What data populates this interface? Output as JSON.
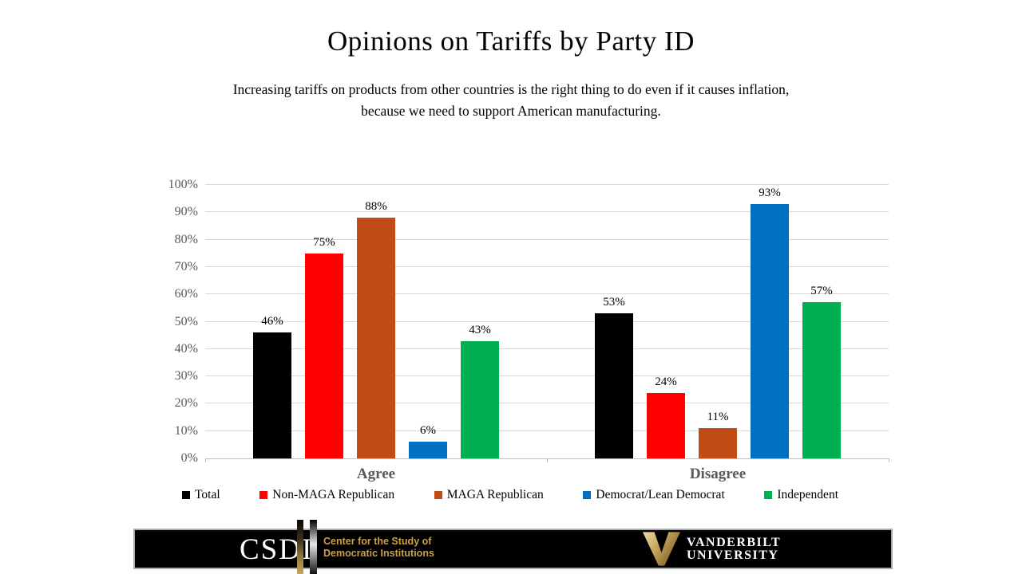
{
  "slide": {
    "title": "Opinions on Tariffs by Party ID",
    "subtitle_line1": "Increasing tariffs on products from other countries is the right thing to do even if it causes inflation,",
    "subtitle_line2": "because we need to support American manufacturing."
  },
  "chart_data": {
    "type": "bar",
    "title": "Opinions on Tariffs by Party ID",
    "categories": [
      "Agree",
      "Disagree"
    ],
    "series": [
      {
        "name": "Total",
        "color": "#000000",
        "values": [
          46,
          53
        ]
      },
      {
        "name": "Non-MAGA Republican",
        "color": "#FF0000",
        "values": [
          75,
          24
        ]
      },
      {
        "name": "MAGA Republican",
        "color": "#BF4D15",
        "values": [
          88,
          11
        ]
      },
      {
        "name": "Democrat/Lean Democrat",
        "color": "#0070C0",
        "values": [
          6,
          93
        ]
      },
      {
        "name": "Independent",
        "color": "#00B050",
        "values": [
          43,
          57
        ]
      }
    ],
    "data_labels": [
      "46%",
      "75%",
      "88%",
      "6%",
      "43%",
      "53%",
      "24%",
      "11%",
      "93%",
      "57%"
    ],
    "ylim": [
      0,
      100
    ],
    "yticks": [
      "0%",
      "10%",
      "20%",
      "30%",
      "40%",
      "50%",
      "60%",
      "70%",
      "80%",
      "90%",
      "100%"
    ],
    "grid": true,
    "legend_position": "bottom",
    "colors": {
      "gridline": "#D9D9D9",
      "axis": "#BFBFBF",
      "tick_text": "#595959"
    }
  },
  "footer": {
    "csdi_acronym": "CSDI",
    "csdi_name_line1": "Center for the Study of",
    "csdi_name_line2": "Democratic Institutions",
    "university_line1": "VANDERBILT",
    "university_line2": "UNIVERSITY",
    "colors": {
      "bar": "#000000",
      "gold_text": "#C9A04C"
    }
  }
}
